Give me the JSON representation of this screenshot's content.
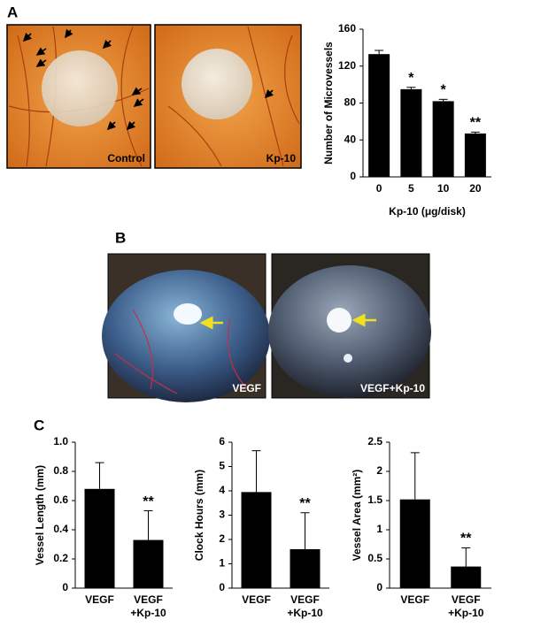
{
  "panel_labels": [
    "A",
    "B",
    "C"
  ],
  "photo_labels": [
    "Control",
    "Kp-10",
    "VEGF",
    "VEGF+Kp-10"
  ],
  "chart_data": [
    {
      "type": "bar",
      "y_label": "Number of Microvessels",
      "x_label": "Kp-10 (μg/disk)",
      "categories": [
        "0",
        "5",
        "10",
        "20"
      ],
      "values": [
        133,
        95,
        82,
        47
      ],
      "errors": [
        4,
        2,
        2,
        1.5
      ],
      "markers": [
        null,
        "*",
        "*",
        "**"
      ],
      "color": "#000000",
      "ylim": [
        0,
        160
      ],
      "yticks": [
        0,
        40,
        80,
        120,
        160
      ]
    },
    {
      "type": "bar",
      "y_label": "Vessel Length (mm)",
      "categories": [
        "VEGF",
        "VEGF +Kp-10"
      ],
      "values": [
        0.68,
        0.33
      ],
      "errors": [
        0.18,
        0.2
      ],
      "markers": [
        null,
        "**"
      ],
      "color": "#000000",
      "ylim": [
        0,
        1
      ],
      "yticks": [
        0,
        0.2,
        0.4,
        0.6,
        0.8,
        {
          "value": 1,
          "label": "1.0"
        }
      ]
    },
    {
      "type": "bar",
      "y_label": "Clock Hours (mm)",
      "categories": [
        "VEGF",
        "VEGF +Kp-10"
      ],
      "values": [
        3.95,
        1.6
      ],
      "errors": [
        1.7,
        1.5
      ],
      "markers": [
        null,
        "**"
      ],
      "color": "#000000",
      "ylim": [
        0,
        6
      ],
      "yticks": [
        0,
        1,
        2,
        3,
        4,
        5,
        6
      ]
    },
    {
      "type": "bar",
      "y_label": "Vessel Area (mm²)",
      "categories": [
        "VEGF",
        "VEGF +Kp-10"
      ],
      "values": [
        1.52,
        0.37
      ],
      "errors": [
        0.8,
        0.32
      ],
      "markers": [
        null,
        "**"
      ],
      "color": "#000000",
      "ylim": [
        0,
        2.5
      ],
      "yticks": [
        0,
        0.5,
        1,
        1.5,
        2,
        2.5
      ]
    }
  ]
}
